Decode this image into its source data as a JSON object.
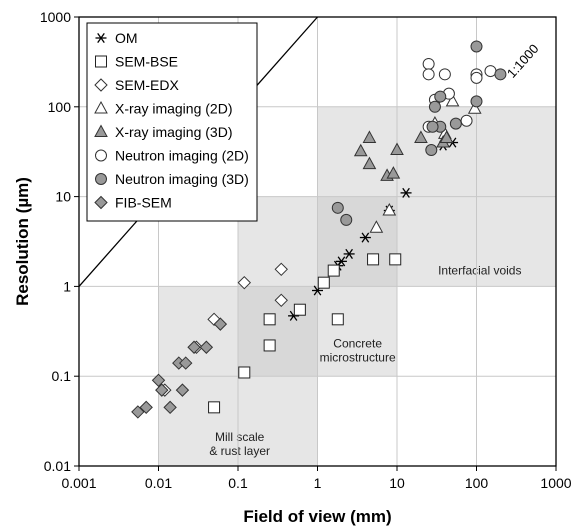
{
  "chart_data": {
    "type": "scatter",
    "xscale": "log",
    "yscale": "log",
    "xlim": [
      0.001,
      1000
    ],
    "ylim": [
      0.01,
      1000
    ],
    "xlabel": "Field of view (mm)",
    "ylabel": "Resolution (µm)",
    "x_ticks": [
      "0.001",
      "0.01",
      "0.1",
      "1",
      "10",
      "100",
      "1000"
    ],
    "y_ticks": [
      "0.01",
      "0.1",
      "1",
      "10",
      "100",
      "1000"
    ],
    "grid": true,
    "legend_position": "top-left",
    "reference_line": {
      "label": "1:1000",
      "ratio": 1000,
      "color": "#000000"
    },
    "regions": [
      {
        "label": "Mill scale\n& rust layer",
        "x": [
          0.01,
          1
        ],
        "y": [
          0.01,
          1
        ],
        "color": "#e6e6e6"
      },
      {
        "label": "Concrete\nmicrostructure",
        "x": [
          0.1,
          10
        ],
        "y": [
          0.1,
          10
        ],
        "color": "#e6e6e6"
      },
      {
        "label": "Interfacial voids",
        "x": [
          1,
          1000
        ],
        "y": [
          1,
          100
        ],
        "color": "#e6e6e6"
      }
    ],
    "series": [
      {
        "name": "OM",
        "marker": "asterisk",
        "points": [
          [
            0.5,
            0.47
          ],
          [
            1,
            0.9
          ],
          [
            1.8,
            1.7
          ],
          [
            2,
            1.9
          ],
          [
            2.5,
            2.3
          ],
          [
            4,
            3.5
          ],
          [
            8,
            7
          ],
          [
            13,
            11
          ],
          [
            38,
            37
          ],
          [
            50,
            40
          ]
        ]
      },
      {
        "name": "SEM-BSE",
        "marker": "square-open",
        "points": [
          [
            0.05,
            0.045
          ],
          [
            0.12,
            0.11
          ],
          [
            0.25,
            0.22
          ],
          [
            0.25,
            0.43
          ],
          [
            0.6,
            0.55
          ],
          [
            1.2,
            1.1
          ],
          [
            1.6,
            1.5
          ],
          [
            1.8,
            0.43
          ],
          [
            5,
            2
          ],
          [
            9.5,
            2
          ]
        ]
      },
      {
        "name": "SEM-EDX",
        "marker": "diamond-open",
        "points": [
          [
            0.012,
            0.07
          ],
          [
            0.03,
            0.21
          ],
          [
            0.05,
            0.43
          ],
          [
            0.12,
            1.1
          ],
          [
            0.35,
            1.55
          ],
          [
            0.35,
            0.7
          ]
        ]
      },
      {
        "name": "X-ray imaging (2D)",
        "marker": "triangle-open",
        "points": [
          [
            5.5,
            4.5
          ],
          [
            8,
            7
          ],
          [
            30,
            65
          ],
          [
            40,
            50
          ],
          [
            50,
            115
          ],
          [
            95,
            95
          ]
        ]
      },
      {
        "name": "X-ray imaging (3D)",
        "marker": "triangle-filled",
        "points": [
          [
            3.5,
            32
          ],
          [
            4.5,
            45
          ],
          [
            4.5,
            23
          ],
          [
            7.5,
            17
          ],
          [
            9,
            18
          ],
          [
            10,
            33
          ],
          [
            20,
            45
          ],
          [
            38,
            40
          ],
          [
            42,
            45
          ]
        ]
      },
      {
        "name": "Neutron imaging (2D)",
        "marker": "circle-open",
        "points": [
          [
            25,
            300
          ],
          [
            25,
            230
          ],
          [
            30,
            120
          ],
          [
            40,
            230
          ],
          [
            100,
            230
          ],
          [
            100,
            210
          ],
          [
            150,
            250
          ],
          [
            25,
            60
          ],
          [
            75,
            70
          ],
          [
            45,
            140
          ]
        ]
      },
      {
        "name": "Neutron imaging (3D)",
        "marker": "circle-filled",
        "points": [
          [
            1.8,
            7.5
          ],
          [
            2.3,
            5.5
          ],
          [
            27,
            33
          ],
          [
            30,
            100
          ],
          [
            35,
            60
          ],
          [
            55,
            65
          ],
          [
            100,
            115
          ],
          [
            200,
            230
          ],
          [
            100,
            470
          ],
          [
            35,
            130
          ],
          [
            28,
            60
          ]
        ]
      },
      {
        "name": "FIB-SEM",
        "marker": "diamond-filled",
        "points": [
          [
            0.0055,
            0.04
          ],
          [
            0.007,
            0.045
          ],
          [
            0.01,
            0.09
          ],
          [
            0.011,
            0.07
          ],
          [
            0.014,
            0.045
          ],
          [
            0.018,
            0.14
          ],
          [
            0.02,
            0.07
          ],
          [
            0.022,
            0.14
          ],
          [
            0.028,
            0.21
          ],
          [
            0.04,
            0.21
          ],
          [
            0.06,
            0.38
          ]
        ]
      }
    ]
  }
}
